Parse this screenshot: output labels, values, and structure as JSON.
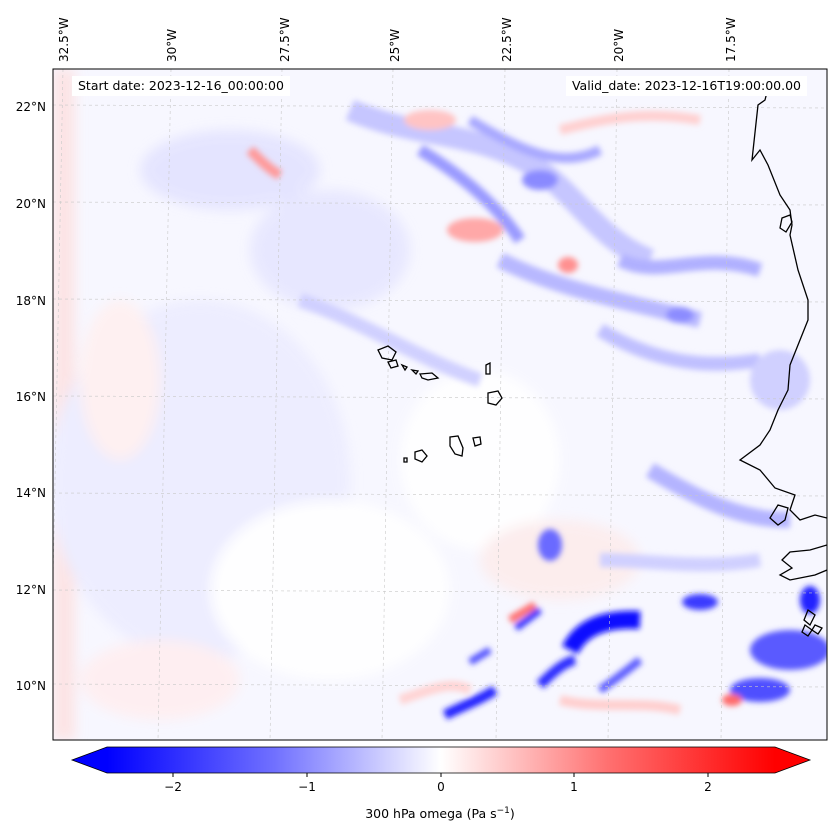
{
  "header": {
    "start_date": "Start date: 2023-12-16_00:00:00",
    "valid_date": "Valid_date: 2023-12-16T19:00:00.00"
  },
  "map": {
    "lon_labels": [
      "32.5°W",
      "30°W",
      "27.5°W",
      "25°W",
      "22.5°W",
      "20°W",
      "17.5°W"
    ],
    "lat_labels": [
      "22°N",
      "20°N",
      "18°N",
      "16°N",
      "14°N",
      "12°N",
      "10°N"
    ],
    "field": "300 hPa omega",
    "colors": {
      "negative": "#0000ff",
      "positive": "#ff0000",
      "neutral": "#ffffff",
      "coastline": "#000000",
      "gridline": "#bbbbbb"
    }
  },
  "colorbar": {
    "ticks": [
      "−2",
      "−1",
      "0",
      "1",
      "2"
    ],
    "range": [
      -2.7,
      2.7
    ],
    "title_main": "300 hPa omega (Pa s",
    "title_sup": "−1",
    "title_end": ")"
  }
}
